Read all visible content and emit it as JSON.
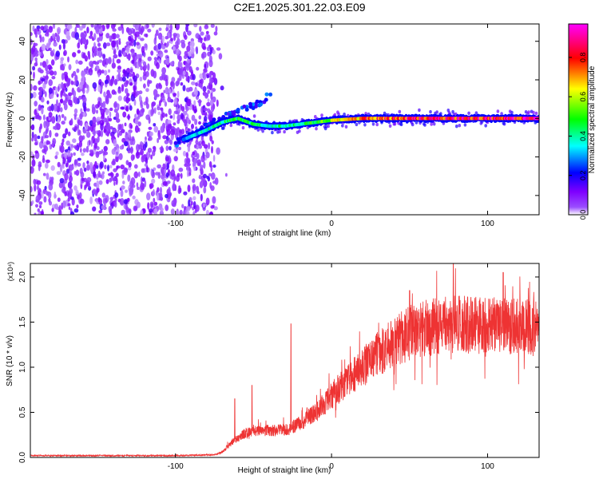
{
  "title": "C2E1.2025.301.22.03.E09",
  "chart_data": [
    {
      "type": "heatmap",
      "title": "C2E1.2025.301.22.03.E09",
      "xlabel": "Height of straight line (km)",
      "ylabel": "Frequency (Hz)",
      "xlim": [
        -193,
        133
      ],
      "ylim": [
        -50,
        49
      ],
      "x_ticks": [
        -100,
        0,
        100
      ],
      "x_tick_labels": [
        "-100",
        "0",
        "100"
      ],
      "y_ticks": [
        -40,
        -20,
        0,
        20,
        40
      ],
      "y_tick_labels": [
        "-40",
        "-20",
        "0",
        "20",
        "40"
      ],
      "colorbar": {
        "label": "Normalized spectral amplitude",
        "range": [
          0,
          0.97
        ],
        "ticks": [
          0.0,
          0.2,
          0.4,
          0.6,
          0.8
        ],
        "tick_labels": [
          "0.0",
          "0.2",
          "0.4",
          "0.6",
          "0.8"
        ],
        "colors": [
          "#ffffff",
          "#7f00ff",
          "#0000ff",
          "#00ffff",
          "#00ff00",
          "#ffff00",
          "#ff0000",
          "#ff00ff"
        ]
      },
      "regions": [
        {
          "name": "broadband noise",
          "x_range": [
            -193,
            -75
          ],
          "freq_range": [
            -50,
            49
          ],
          "amplitude": [
            0.02,
            0.15
          ]
        },
        {
          "name": "signal onset branch",
          "x": [
            -100,
            -80,
            -60,
            -45,
            -38
          ],
          "freq": [
            -13,
            -4,
            4,
            8,
            14
          ],
          "amplitude": [
            0.15,
            0.3
          ]
        },
        {
          "name": "signal line",
          "x": [
            -95,
            -80,
            -70,
            -60,
            -50,
            -40,
            -30,
            -20,
            0,
            20,
            40,
            60,
            80,
            100,
            133
          ],
          "freq": [
            -11,
            -6,
            -2,
            0,
            -3,
            -4,
            -4,
            -3,
            -1,
            0,
            0,
            0,
            0,
            0,
            0
          ],
          "amplitude": [
            0.3,
            0.4,
            0.45,
            0.5,
            0.45,
            0.4,
            0.45,
            0.45,
            0.6,
            0.8,
            0.85,
            0.9,
            0.9,
            0.9,
            0.9
          ]
        }
      ]
    },
    {
      "type": "line",
      "xlabel": "Height of straight line (km)",
      "ylabel": "SNR (10 * v/v)",
      "scale_label": "(x10⁴)",
      "xlim": [
        -193,
        133
      ],
      "ylim": [
        0,
        2.15
      ],
      "x_ticks": [
        -100,
        0,
        100
      ],
      "x_tick_labels": [
        "-100",
        "0",
        "100"
      ],
      "y_ticks": [
        0,
        0.5,
        1.0,
        1.5,
        2.0
      ],
      "y_tick_labels": [
        "0.0",
        "0.5",
        "1.0",
        "1.5",
        "2.0"
      ],
      "color": "#ee3333",
      "series": [
        {
          "name": "SNR",
          "x": [
            -193,
            -150,
            -100,
            -75,
            -70,
            -65,
            -60,
            -55,
            -50,
            -45,
            -40,
            -35,
            -30,
            -25,
            -20,
            -10,
            0,
            10,
            20,
            30,
            40,
            50,
            60,
            70,
            80,
            90,
            100,
            110,
            120,
            133
          ],
          "y": [
            0.02,
            0.02,
            0.02,
            0.03,
            0.06,
            0.15,
            0.22,
            0.27,
            0.3,
            0.3,
            0.3,
            0.3,
            0.31,
            0.33,
            0.38,
            0.5,
            0.68,
            0.85,
            1.0,
            1.15,
            1.27,
            1.38,
            1.44,
            1.47,
            1.48,
            1.47,
            1.46,
            1.45,
            1.44,
            1.44
          ],
          "peaks": [
            {
              "x": -62,
              "y": 0.65
            },
            {
              "x": -51,
              "y": 0.8
            },
            {
              "x": -26,
              "y": 1.48
            },
            {
              "x": 50,
              "y": 1.85
            },
            {
              "x": 78,
              "y": 2.15
            },
            {
              "x": 110,
              "y": 2.05
            }
          ]
        }
      ]
    }
  ]
}
